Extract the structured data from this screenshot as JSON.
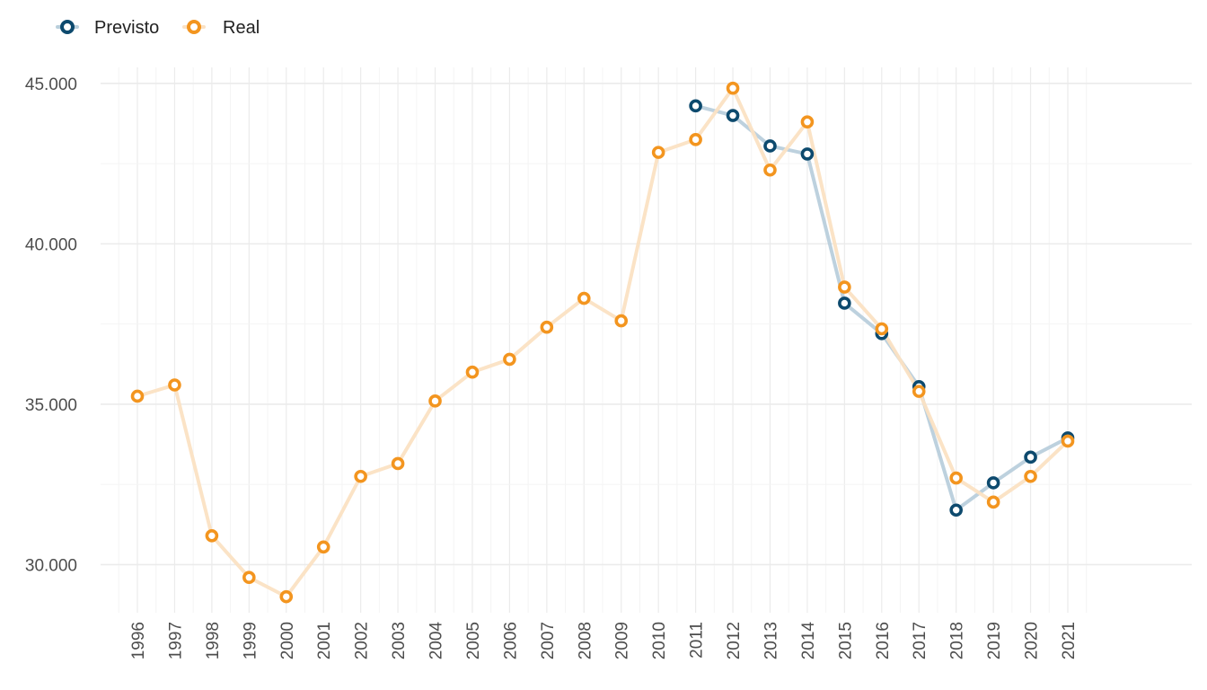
{
  "colors": {
    "previsto": "#0d4a6e",
    "real": "#f3951f",
    "previsto_line": "#b9cfdc",
    "real_line": "#fbe1c3",
    "grid_major": "#ebebeb",
    "grid_minor": "#f4f4f4"
  },
  "legend": {
    "previsto_label": "Previsto",
    "real_label": "Real"
  },
  "chart_data": {
    "type": "line",
    "x": [
      "1996",
      "1997",
      "1998",
      "1999",
      "2000",
      "2001",
      "2002",
      "2003",
      "2004",
      "2005",
      "2006",
      "2007",
      "2008",
      "2009",
      "2010",
      "2011",
      "2012",
      "2013",
      "2014",
      "2015",
      "2016",
      "2017",
      "2018",
      "2019",
      "2020",
      "2021"
    ],
    "series": [
      {
        "name": "Previsto",
        "x": [
          "2011",
          "2012",
          "2013",
          "2014",
          "2015",
          "2016",
          "2017",
          "2018",
          "2019",
          "2020",
          "2021"
        ],
        "values": [
          44300,
          44000,
          43050,
          42800,
          38150,
          37200,
          35550,
          31700,
          32550,
          33350,
          33950
        ]
      },
      {
        "name": "Real",
        "x": [
          "1996",
          "1997",
          "1998",
          "1999",
          "2000",
          "2001",
          "2002",
          "2003",
          "2004",
          "2005",
          "2006",
          "2007",
          "2008",
          "2009",
          "2010",
          "2011",
          "2012",
          "2013",
          "2014",
          "2015",
          "2016",
          "2017",
          "2018",
          "2019",
          "2020",
          "2021"
        ],
        "values": [
          35250,
          35600,
          30900,
          29600,
          29000,
          30550,
          32750,
          33150,
          35100,
          36000,
          36400,
          37400,
          38300,
          37600,
          42850,
          43250,
          44850,
          42300,
          43800,
          38650,
          37350,
          35400,
          32700,
          31950,
          32750,
          33850
        ]
      }
    ],
    "yticks": [
      "30.000",
      "35.000",
      "40.000",
      "45.000"
    ],
    "ytick_values": [
      30000,
      35000,
      40000,
      45000
    ],
    "ylim": [
      28500,
      45500
    ],
    "grid": true,
    "legend_position": "top-left",
    "title": "",
    "xlabel": "",
    "ylabel": ""
  }
}
